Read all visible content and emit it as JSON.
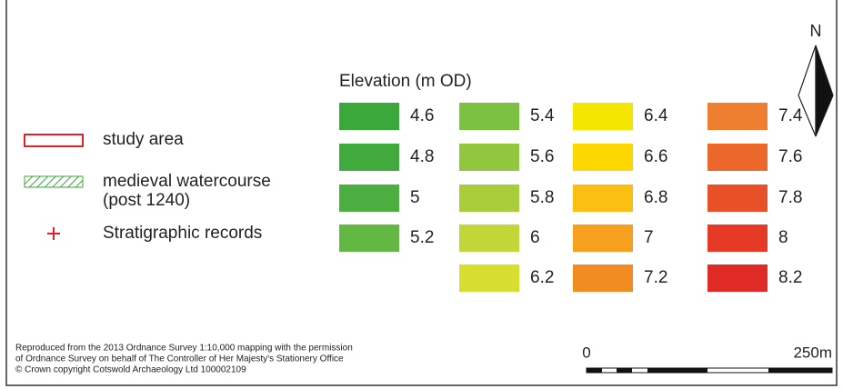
{
  "legend": {
    "items": [
      {
        "label": "study area",
        "symbol": "outline",
        "color": "#e0202a"
      },
      {
        "label": "medieval watercourse",
        "sublabel": "(post 1240)",
        "symbol": "hatch",
        "color": "#3aaa3a"
      },
      {
        "label": "Stratigraphic records",
        "symbol": "cross",
        "color": "#e0202a"
      }
    ]
  },
  "elevation": {
    "title": "Elevation (m OD)",
    "columns": [
      [
        {
          "label": "4.6",
          "color": "#3aa83a"
        },
        {
          "label": "4.8",
          "color": "#40ab3c"
        },
        {
          "label": "5",
          "color": "#4aaf40"
        },
        {
          "label": "5.2",
          "color": "#62b842"
        }
      ],
      [
        {
          "label": "5.4",
          "color": "#7cc142"
        },
        {
          "label": "5.6",
          "color": "#92c63f"
        },
        {
          "label": "5.8",
          "color": "#a8cc3a"
        },
        {
          "label": "6",
          "color": "#c2d63a"
        },
        {
          "label": "6.2",
          "color": "#d6de30"
        }
      ],
      [
        {
          "label": "6.4",
          "color": "#f3e600"
        },
        {
          "label": "6.6",
          "color": "#fcd800"
        },
        {
          "label": "6.8",
          "color": "#fbbe12"
        },
        {
          "label": "7",
          "color": "#f7a020"
        },
        {
          "label": "7.2",
          "color": "#f08c22"
        }
      ],
      [
        {
          "label": "7.4",
          "color": "#ee7e30"
        },
        {
          "label": "7.6",
          "color": "#ec682a"
        },
        {
          "label": "7.8",
          "color": "#e85028"
        },
        {
          "label": "8",
          "color": "#e63a26"
        },
        {
          "label": "8.2",
          "color": "#e02a26"
        }
      ]
    ]
  },
  "north": "N",
  "scale": {
    "start": "0",
    "end": "250m"
  },
  "credits": [
    "Reproduced from the 2013 Ordnance Survey 1:10,000 mapping with the permission",
    "of Ordnance Survey on behalf of The Controller of Her Majesty's Stationery Office",
    "© Crown copyright Cotswold Archaeology Ltd 100002109"
  ]
}
